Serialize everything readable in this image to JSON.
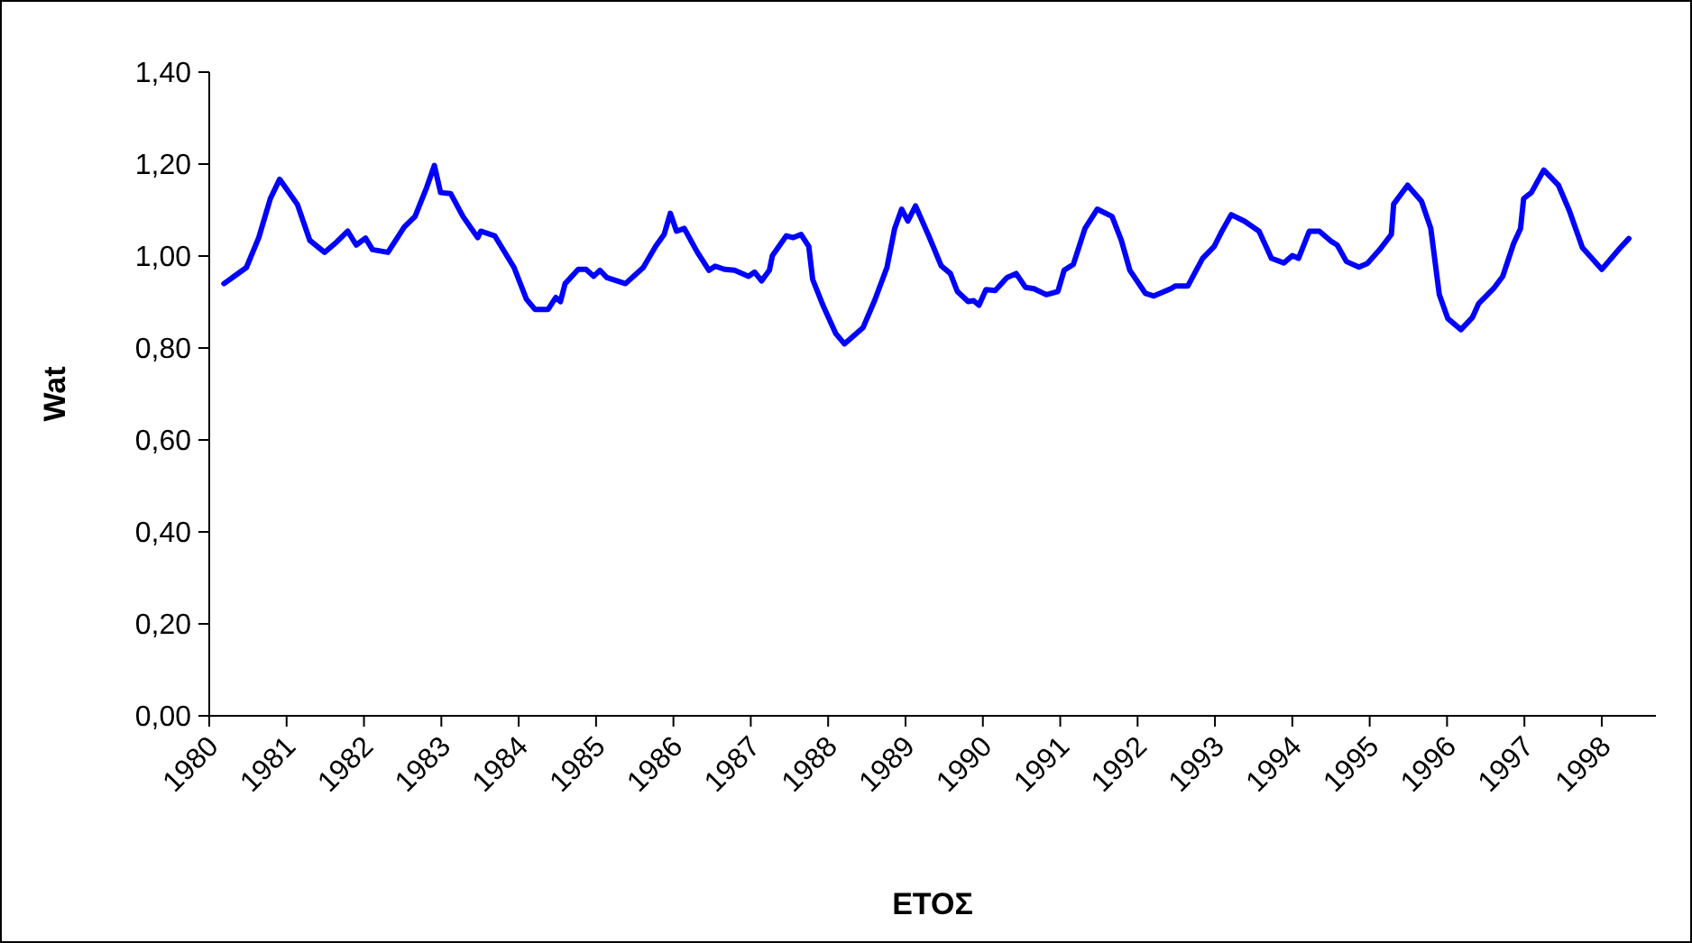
{
  "chart_data": {
    "type": "line",
    "xlabel": "ΕΤΟΣ",
    "ylabel": "Wat",
    "xlim": [
      1980,
      1998.7
    ],
    "xticks": [
      1980,
      1981,
      1982,
      1983,
      1984,
      1985,
      1986,
      1987,
      1988,
      1989,
      1990,
      1991,
      1992,
      1993,
      1994,
      1995,
      1996,
      1997,
      1998
    ],
    "ylim": [
      0,
      1.4
    ],
    "yticks": [
      {
        "value": 0,
        "label": "0,00"
      },
      {
        "value": 0.2,
        "label": "0,20"
      },
      {
        "value": 0.4,
        "label": "0,40"
      },
      {
        "value": 0.6,
        "label": "0,60"
      },
      {
        "value": 0.8,
        "label": "0,80"
      },
      {
        "value": 1,
        "label": "1,00"
      },
      {
        "value": 1.2,
        "label": "1,20"
      },
      {
        "value": 1.4,
        "label": "1,40"
      }
    ],
    "grid": false,
    "marker": "none",
    "line_style": "solid",
    "series": [
      {
        "color": "#0000ff",
        "x": [
          1980.19,
          1980.48,
          1980.64,
          1980.79,
          1980.91,
          1981.14,
          1981.3,
          1981.49,
          1981.65,
          1981.79,
          1981.9,
          1982.02,
          1982.11,
          1982.31,
          1982.52,
          1982.66,
          1982.81,
          1982.91,
          1982.99,
          1983.12,
          1983.28,
          1983.47,
          1983.51,
          1983.69,
          1983.94,
          1984.1,
          1984.21,
          1984.38,
          1984.48,
          1984.54,
          1984.6,
          1984.77,
          1984.87,
          1984.97,
          1985.05,
          1985.14,
          1985.38,
          1985.61,
          1985.77,
          1985.88,
          1985.96,
          1986.04,
          1986.14,
          1986.31,
          1986.46,
          1986.54,
          1986.66,
          1986.79,
          1986.97,
          1987.05,
          1987.14,
          1987.24,
          1987.28,
          1987.46,
          1987.55,
          1987.65,
          1987.75,
          1987.8,
          1987.94,
          1988.1,
          1988.21,
          1988.45,
          1988.6,
          1988.76,
          1988.86,
          1988.95,
          1989.03,
          1989.13,
          1989.3,
          1989.46,
          1989.58,
          1989.67,
          1989.81,
          1989.88,
          1989.95,
          1990.04,
          1990.16,
          1990.31,
          1990.43,
          1990.55,
          1990.66,
          1990.82,
          1990.97,
          1991.05,
          1991.17,
          1991.32,
          1991.48,
          1991.67,
          1991.79,
          1991.9,
          1992.1,
          1992.21,
          1992.43,
          1992.49,
          1992.65,
          1992.84,
          1992.99,
          1993.09,
          1993.21,
          1993.38,
          1993.57,
          1993.73,
          1993.89,
          1994.0,
          1994.08,
          1994.22,
          1994.35,
          1994.51,
          1994.58,
          1994.7,
          1994.86,
          1994.97,
          1995.13,
          1995.28,
          1995.31,
          1995.49,
          1995.67,
          1995.79,
          1995.9,
          1996.01,
          1996.18,
          1996.33,
          1996.41,
          1996.6,
          1996.72,
          1996.86,
          1996.95,
          1996.99,
          1997.09,
          1997.25,
          1997.44,
          1997.58,
          1997.75,
          1998.0,
          1998.24,
          1998.35
        ],
        "values": [
          0.94,
          0.975,
          1.04,
          1.125,
          1.167,
          1.112,
          1.034,
          1.008,
          1.031,
          1.054,
          1.024,
          1.039,
          1.014,
          1.008,
          1.063,
          1.086,
          1.149,
          1.197,
          1.138,
          1.136,
          1.086,
          1.04,
          1.054,
          1.044,
          0.975,
          0.906,
          0.884,
          0.884,
          0.91,
          0.901,
          0.94,
          0.971,
          0.971,
          0.956,
          0.969,
          0.953,
          0.94,
          0.975,
          1.021,
          1.047,
          1.093,
          1.054,
          1.06,
          1.008,
          0.969,
          0.978,
          0.971,
          0.969,
          0.956,
          0.965,
          0.946,
          0.969,
          1.001,
          1.044,
          1.04,
          1.047,
          1.021,
          0.949,
          0.89,
          0.831,
          0.809,
          0.844,
          0.903,
          0.975,
          1.06,
          1.102,
          1.076,
          1.109,
          1.044,
          0.979,
          0.962,
          0.923,
          0.901,
          0.903,
          0.893,
          0.927,
          0.925,
          0.953,
          0.962,
          0.932,
          0.929,
          0.916,
          0.923,
          0.969,
          0.982,
          1.06,
          1.102,
          1.086,
          1.034,
          0.969,
          0.919,
          0.913,
          0.929,
          0.935,
          0.935,
          0.995,
          1.021,
          1.054,
          1.09,
          1.076,
          1.054,
          0.995,
          0.985,
          1.001,
          0.995,
          1.054,
          1.054,
          1.031,
          1.024,
          0.988,
          0.976,
          0.984,
          1.014,
          1.047,
          1.113,
          1.154,
          1.119,
          1.06,
          0.916,
          0.864,
          0.84,
          0.867,
          0.897,
          0.929,
          0.956,
          1.027,
          1.06,
          1.125,
          1.138,
          1.187,
          1.154,
          1.099,
          1.018,
          0.971,
          1.018,
          1.038
        ]
      }
    ]
  }
}
